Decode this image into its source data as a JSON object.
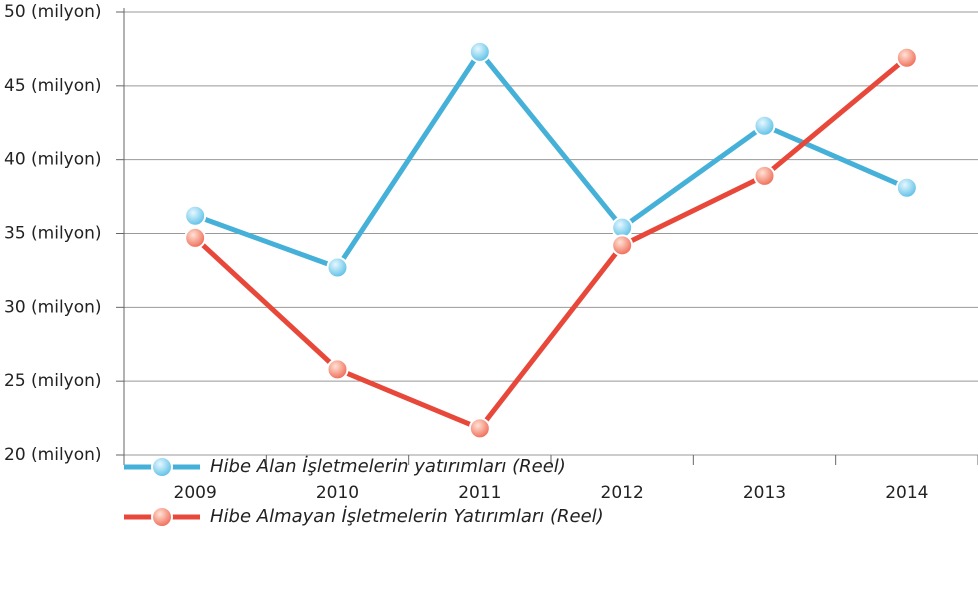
{
  "chart_data": {
    "type": "line",
    "categories": [
      "2009",
      "2010",
      "2011",
      "2012",
      "2013",
      "2014"
    ],
    "series": [
      {
        "name": "Hibe Alan İşletmelerin yatırımları (Reel)",
        "color": "#45b0d8",
        "values": [
          36.2,
          32.7,
          47.3,
          35.4,
          42.3,
          38.1
        ]
      },
      {
        "name": "Hibe Almayan İşletmelerin Yatırımları (Reel)",
        "color": "#e8483a",
        "values": [
          34.7,
          25.8,
          21.8,
          34.2,
          38.9,
          46.9
        ]
      }
    ],
    "ylim": [
      20,
      50
    ],
    "yticks": [
      {
        "value": 20,
        "label": "20 (milyon)"
      },
      {
        "value": 25,
        "label": "25 (milyon)"
      },
      {
        "value": 30,
        "label": "30 (milyon)"
      },
      {
        "value": 35,
        "label": "35 (milyon)"
      },
      {
        "value": 40,
        "label": "40 (milyon)"
      },
      {
        "value": 45,
        "label": "45 (milyon)"
      },
      {
        "value": 50,
        "label": "50 (milyon)"
      }
    ],
    "grid": true
  }
}
